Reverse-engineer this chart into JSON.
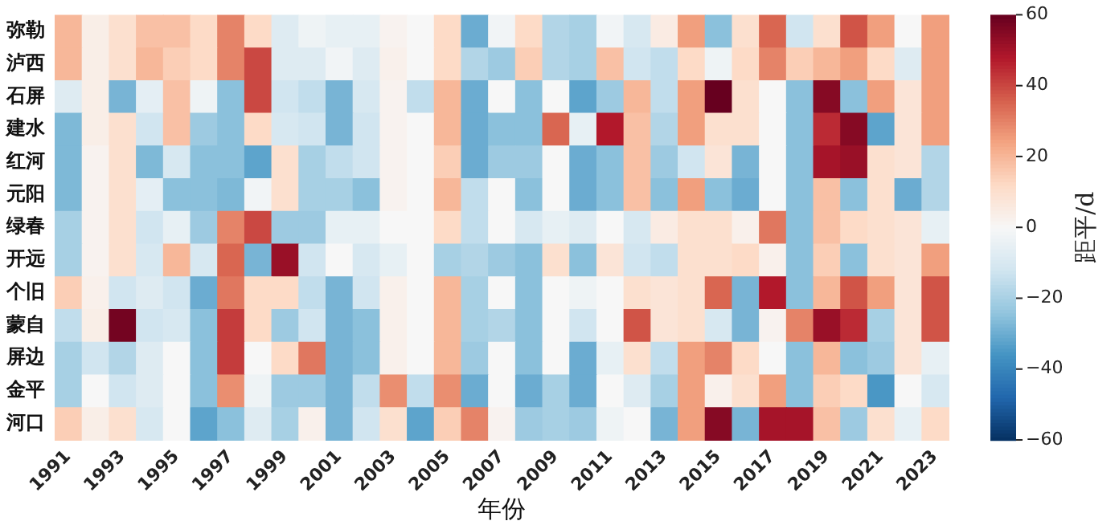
{
  "chart_data": {
    "type": "heatmap",
    "xlabel": "年份",
    "clabel": "距平/d",
    "categories": [
      "1991",
      null,
      "1993",
      null,
      "1995",
      null,
      "1997",
      null,
      "1999",
      null,
      "2001",
      null,
      "2003",
      null,
      "2005",
      null,
      "2007",
      null,
      "2009",
      null,
      "2011",
      null,
      "2013",
      null,
      "2015",
      null,
      "2017",
      null,
      "2019",
      null,
      "2021",
      null,
      "2023"
    ],
    "y_categories": [
      "弥勒",
      "泸西",
      "石屏",
      "建水",
      "红河",
      "元阳",
      "绿春",
      "开远",
      "个旧",
      "蒙自",
      "屏边",
      "金平",
      "河口"
    ],
    "cells": [
      [
        20,
        4,
        10,
        18,
        18,
        12,
        30,
        12,
        -8,
        -3,
        -5,
        -5,
        2,
        0,
        12,
        -30,
        -2,
        12,
        -18,
        -20,
        -2,
        -10,
        5,
        25,
        -25,
        10,
        35,
        -12,
        10,
        38,
        25,
        0,
        25
      ],
      [
        20,
        4,
        10,
        20,
        15,
        12,
        30,
        40,
        -8,
        -8,
        -2,
        -8,
        3,
        0,
        12,
        -18,
        -22,
        15,
        -18,
        -20,
        18,
        -12,
        -15,
        12,
        -3,
        12,
        30,
        15,
        20,
        25,
        12,
        -8,
        25
      ],
      [
        -8,
        4,
        -28,
        -6,
        18,
        -3,
        -25,
        40,
        -12,
        -15,
        -28,
        -10,
        2,
        -15,
        20,
        -30,
        0,
        -25,
        0,
        -32,
        -22,
        20,
        -15,
        25,
        60,
        10,
        0,
        -25,
        55,
        -25,
        25,
        8,
        25
      ],
      [
        -27,
        4,
        10,
        -12,
        18,
        -22,
        -25,
        12,
        -10,
        -12,
        -28,
        -12,
        2,
        0,
        20,
        -30,
        -25,
        -25,
        35,
        -5,
        48,
        18,
        -18,
        25,
        10,
        10,
        0,
        -25,
        45,
        55,
        -32,
        8,
        25
      ],
      [
        -27,
        2,
        10,
        -27,
        -10,
        -25,
        -25,
        -32,
        10,
        -20,
        -15,
        -12,
        2,
        0,
        15,
        -30,
        -22,
        -22,
        0,
        -30,
        -25,
        18,
        -22,
        -12,
        8,
        -28,
        0,
        -25,
        50,
        52,
        10,
        8,
        -18
      ],
      [
        -27,
        2,
        10,
        -6,
        -25,
        -25,
        -27,
        -2,
        10,
        -20,
        -20,
        -25,
        2,
        0,
        20,
        -15,
        0,
        -25,
        0,
        -30,
        -25,
        18,
        -25,
        25,
        -25,
        -30,
        0,
        -25,
        18,
        -25,
        10,
        -30,
        -18
      ],
      [
        -20,
        2,
        10,
        -12,
        -5,
        -22,
        30,
        40,
        -22,
        -22,
        -5,
        -5,
        0,
        0,
        12,
        -15,
        0,
        -10,
        -5,
        -8,
        0,
        -10,
        5,
        10,
        10,
        3,
        32,
        -25,
        18,
        12,
        10,
        8,
        -5
      ],
      [
        -20,
        2,
        10,
        -10,
        20,
        -10,
        35,
        -28,
        52,
        -12,
        0,
        -10,
        -5,
        0,
        -20,
        -18,
        -22,
        -25,
        10,
        -25,
        8,
        -12,
        -15,
        10,
        10,
        12,
        3,
        -25,
        15,
        -25,
        10,
        8,
        25
      ],
      [
        15,
        3,
        -12,
        -8,
        -12,
        -30,
        32,
        12,
        12,
        -15,
        -28,
        -12,
        3,
        0,
        20,
        -20,
        0,
        -25,
        0,
        -3,
        0,
        10,
        8,
        10,
        35,
        -28,
        48,
        -25,
        20,
        38,
        25,
        8,
        38
      ],
      [
        -15,
        4,
        58,
        -12,
        -10,
        -25,
        42,
        12,
        -22,
        -12,
        -28,
        -25,
        3,
        0,
        20,
        -20,
        -18,
        -25,
        0,
        -12,
        0,
        38,
        8,
        10,
        -10,
        -28,
        2,
        30,
        52,
        45,
        -20,
        8,
        38
      ],
      [
        -20,
        -12,
        -18,
        -8,
        0,
        -25,
        42,
        0,
        12,
        32,
        -28,
        -25,
        3,
        0,
        20,
        -22,
        0,
        -25,
        0,
        -30,
        -5,
        10,
        -15,
        25,
        30,
        12,
        0,
        -25,
        20,
        -25,
        -22,
        8,
        -5
      ],
      [
        -20,
        0,
        -12,
        -8,
        0,
        -25,
        28,
        -3,
        -22,
        -22,
        -28,
        -15,
        28,
        -15,
        28,
        -30,
        0,
        -30,
        -20,
        -30,
        0,
        -8,
        -20,
        25,
        3,
        10,
        25,
        -25,
        15,
        12,
        -35,
        0,
        -10
      ],
      [
        15,
        4,
        10,
        -10,
        0,
        -32,
        -25,
        -8,
        -20,
        3,
        -28,
        -12,
        10,
        -32,
        15,
        30,
        2,
        -22,
        -20,
        -22,
        -3,
        0,
        -28,
        25,
        55,
        -28,
        50,
        50,
        18,
        -22,
        10,
        -5,
        12
      ]
    ],
    "clim": [
      -60,
      60
    ],
    "cticks": [
      -60,
      -40,
      -20,
      0,
      20,
      40,
      60
    ]
  }
}
